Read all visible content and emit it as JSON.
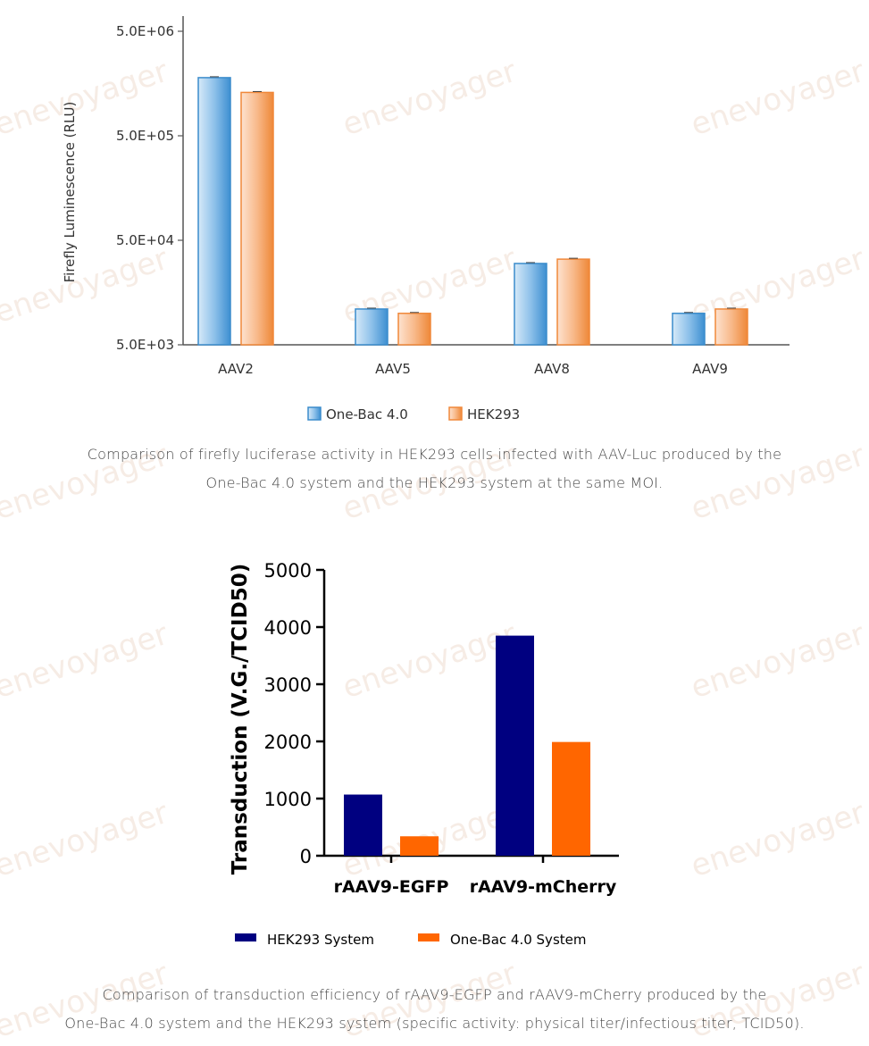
{
  "chart_data": [
    {
      "type": "bar",
      "scale": "log",
      "ylabel": "Firefly Luminescence (RLU)",
      "yticks": [
        "5.0E+03",
        "5.0E+04",
        "5.0E+05",
        "5.0E+06"
      ],
      "ytick_values": [
        5000,
        50000,
        500000,
        5000000
      ],
      "ylim": [
        5000,
        5000000
      ],
      "categories": [
        "AAV2",
        "AAV5",
        "AAV8",
        "AAV9"
      ],
      "series": [
        {
          "name": "One-Bac 4.0",
          "color": "#3a8ccc",
          "values": [
            1800000,
            11000,
            30000,
            10000
          ]
        },
        {
          "name": "HEK293",
          "color": "#f0883a",
          "values": [
            1300000,
            10000,
            33000,
            11000
          ]
        }
      ],
      "legend_position": "bottom",
      "caption": [
        "Comparison of firefly luciferase activity in HEK293 cells infected with AAV-Luc produced by the",
        "One-Bac 4.0 system and the HEK293 system at the same MOI."
      ]
    },
    {
      "type": "bar",
      "ylabel": "Transduction  (V.G./TCID50)",
      "yticks": [
        "0",
        "1000",
        "2000",
        "3000",
        "4000",
        "5000"
      ],
      "ytick_values": [
        0,
        1000,
        2000,
        3000,
        4000,
        5000
      ],
      "ylim": [
        0,
        5000
      ],
      "categories": [
        "rAAV9-EGFP",
        "rAAV9-mCherry"
      ],
      "series": [
        {
          "name": "HEK293 System",
          "color": "#000080",
          "values": [
            1070,
            3850
          ]
        },
        {
          "name": "One-Bac 4.0 System",
          "color": "#ff6600",
          "values": [
            340,
            1990
          ]
        }
      ],
      "legend_position": "bottom",
      "caption": [
        "Comparison of transduction efficiency of rAAV9-EGFP and rAAV9-mCherry produced by the",
        "One-Bac 4.0 system and the HEK293 system (specific activity: physical titer/infectious titer, TCID50)."
      ]
    }
  ],
  "watermark": "enevoyager"
}
